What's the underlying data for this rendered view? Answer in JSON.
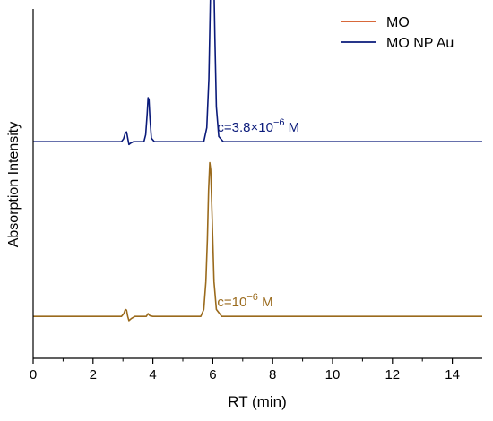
{
  "chart_data": {
    "type": "line",
    "title": "",
    "xlabel": "RT (min)",
    "ylabel": "Absorption Intensity",
    "xlim": [
      0,
      15
    ],
    "xticks": [
      0,
      2,
      4,
      6,
      8,
      10,
      12,
      14
    ],
    "y_tick_labels_shown": false,
    "grid": false,
    "legend": {
      "placement": "top-right",
      "entries": [
        {
          "name": "MO",
          "color": "#d2521e"
        },
        {
          "name": "MO NP Au",
          "color": "#0a1a7a"
        }
      ]
    },
    "series": [
      {
        "name": "MO NP Au",
        "color": "#0a1a7a",
        "annotation": {
          "base": "c=3.8×10",
          "exp": "−6",
          "unit": " M"
        },
        "baseline": 0.62,
        "points": [
          [
            0.0,
            0.62
          ],
          [
            2.95,
            0.62
          ],
          [
            3.02,
            0.628
          ],
          [
            3.08,
            0.645
          ],
          [
            3.12,
            0.648
          ],
          [
            3.16,
            0.63
          ],
          [
            3.2,
            0.612
          ],
          [
            3.26,
            0.616
          ],
          [
            3.35,
            0.62
          ],
          [
            3.7,
            0.62
          ],
          [
            3.76,
            0.64
          ],
          [
            3.81,
            0.7
          ],
          [
            3.84,
            0.746
          ],
          [
            3.87,
            0.74
          ],
          [
            3.9,
            0.69
          ],
          [
            3.95,
            0.63
          ],
          [
            4.05,
            0.62
          ],
          [
            5.7,
            0.62
          ],
          [
            5.8,
            0.66
          ],
          [
            5.87,
            0.8
          ],
          [
            5.91,
            0.98
          ],
          [
            5.95,
            1.18
          ],
          [
            5.985,
            1.24
          ],
          [
            6.02,
            1.16
          ],
          [
            6.07,
            0.92
          ],
          [
            6.12,
            0.72
          ],
          [
            6.2,
            0.635
          ],
          [
            6.35,
            0.62
          ],
          [
            15.0,
            0.62
          ]
        ]
      },
      {
        "name": "MO",
        "color": "#9a6a1c",
        "annotation": {
          "base": "c=10",
          "exp": "−6",
          "unit": " M"
        },
        "baseline": 0.12,
        "points": [
          [
            0.0,
            0.12
          ],
          [
            2.95,
            0.12
          ],
          [
            3.03,
            0.128
          ],
          [
            3.08,
            0.14
          ],
          [
            3.12,
            0.138
          ],
          [
            3.16,
            0.12
          ],
          [
            3.2,
            0.108
          ],
          [
            3.28,
            0.114
          ],
          [
            3.4,
            0.12
          ],
          [
            3.78,
            0.12
          ],
          [
            3.84,
            0.128
          ],
          [
            3.9,
            0.122
          ],
          [
            4.0,
            0.12
          ],
          [
            5.6,
            0.12
          ],
          [
            5.7,
            0.14
          ],
          [
            5.77,
            0.22
          ],
          [
            5.82,
            0.34
          ],
          [
            5.86,
            0.48
          ],
          [
            5.9,
            0.56
          ],
          [
            5.93,
            0.54
          ],
          [
            5.98,
            0.4
          ],
          [
            6.04,
            0.22
          ],
          [
            6.12,
            0.14
          ],
          [
            6.3,
            0.12
          ],
          [
            15.0,
            0.12
          ]
        ]
      }
    ]
  }
}
